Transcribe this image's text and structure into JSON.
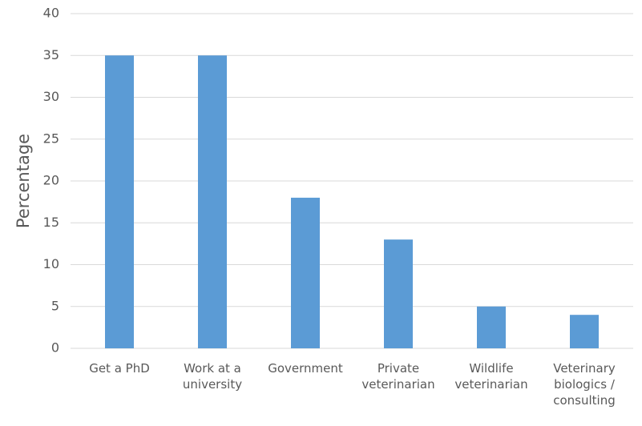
{
  "chart_data": {
    "type": "bar",
    "y_label": "Percentage",
    "categories": [
      "Get a PhD",
      "Work at a university",
      "Government",
      "Private veterinarian",
      "Wildlife veterinarian",
      "Veterinary biologics / consulting"
    ],
    "values": [
      35,
      35,
      18,
      13,
      5,
      4
    ],
    "color": "#5b9bd5",
    "ylim": [
      0,
      40
    ],
    "yticks": [
      0,
      5,
      10,
      15,
      20,
      25,
      30,
      35,
      40
    ],
    "grid": true
  }
}
